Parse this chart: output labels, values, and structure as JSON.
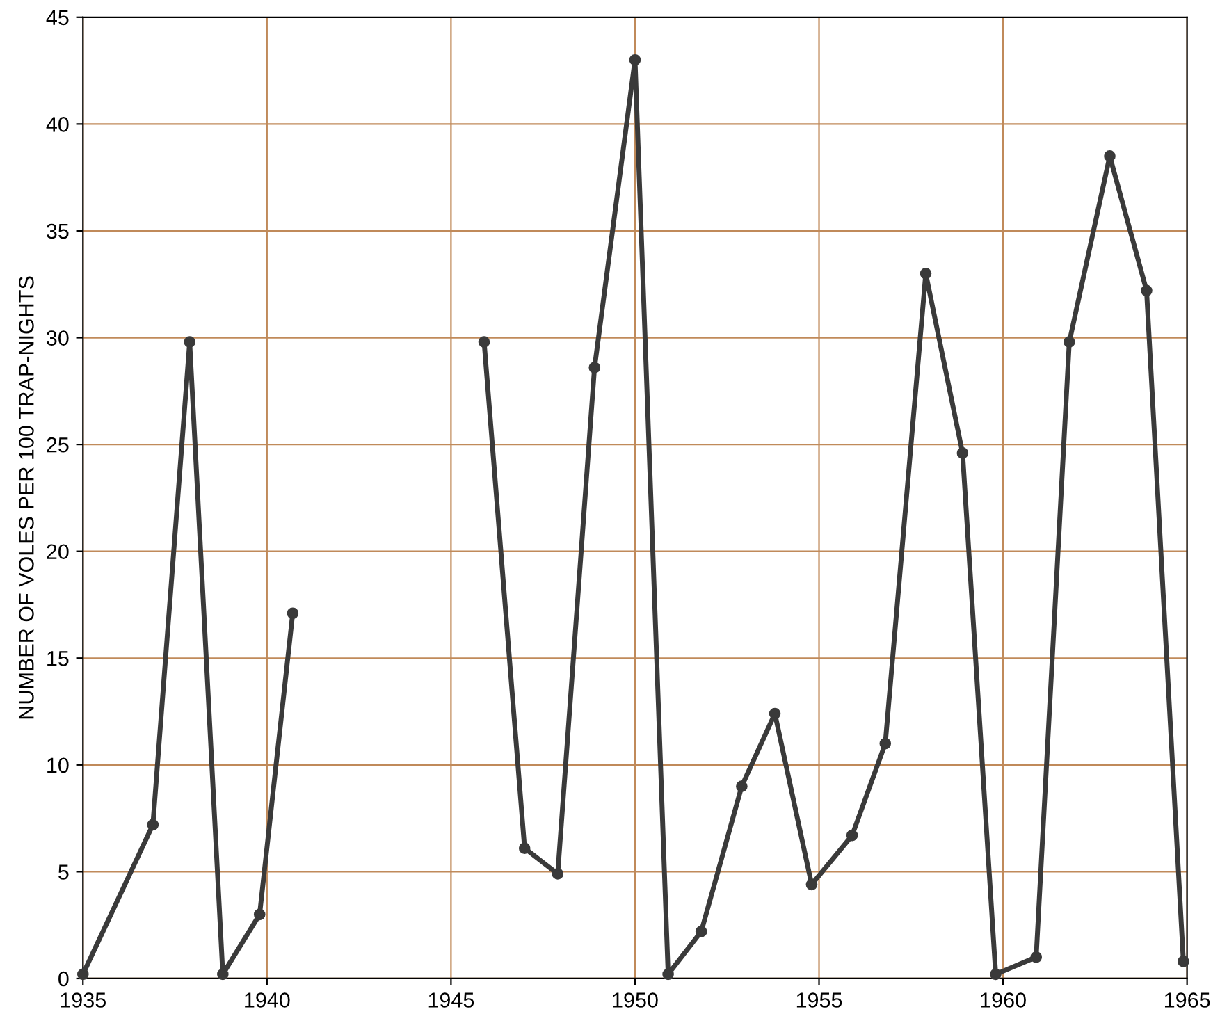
{
  "chart_data": {
    "type": "line",
    "ylabel": "NUMBER OF VOLES PER 100 TRAP-NIGHTS",
    "x": [
      1935.0,
      1936.9,
      1937.9,
      1938.8,
      1939.8,
      1940.7,
      1943.3,
      1945.9,
      1947.0,
      1947.9,
      1948.9,
      1950.0,
      1950.9,
      1951.8,
      1952.9,
      1953.8,
      1954.8,
      1955.9,
      1956.8,
      1957.9,
      1958.9,
      1959.8,
      1960.9,
      1961.8,
      1962.9,
      1963.9,
      1964.9
    ],
    "series": [
      {
        "color": "#3a3a3a",
        "values": [
          0.2,
          7.2,
          29.8,
          0.2,
          3.0,
          17.1,
          null,
          29.8,
          6.1,
          4.9,
          28.6,
          43.0,
          0.2,
          2.2,
          9.0,
          12.4,
          4.4,
          6.7,
          11.0,
          33.0,
          24.6,
          0.2,
          1.0,
          29.8,
          38.5,
          32.2,
          0.8
        ]
      }
    ],
    "xlim": [
      1935,
      1965
    ],
    "xticks": [
      1935,
      1940,
      1945,
      1950,
      1955,
      1960,
      1965
    ],
    "ylim": [
      0,
      45
    ],
    "yticks": [
      0,
      5,
      10,
      15,
      20,
      25,
      30,
      35,
      40,
      45
    ],
    "grid": true,
    "marker": "circle",
    "line_style": "solid",
    "legend": false
  }
}
